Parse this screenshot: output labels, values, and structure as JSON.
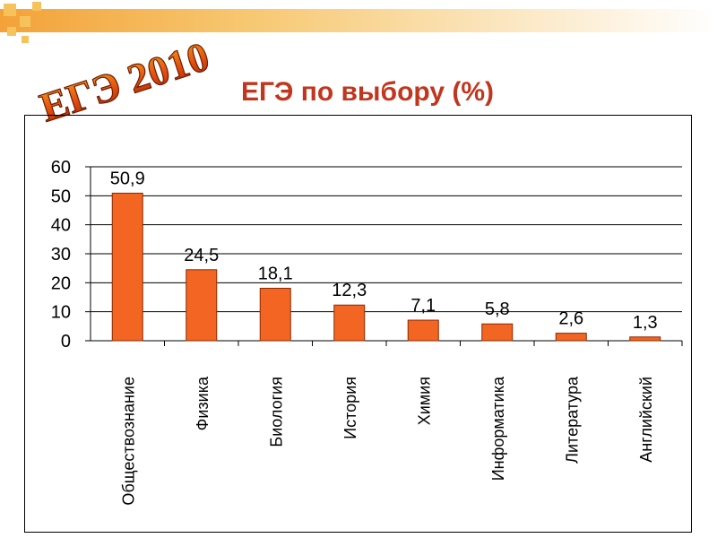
{
  "page": {
    "logo_text": "ЕГЭ 2010",
    "title": "ЕГЭ по выбору (%)"
  },
  "colors": {
    "bar": "#f26522",
    "bar_stroke": "#8a2a00",
    "title": "#c1361e",
    "accent_bar": "#f3a238",
    "logo_fill": "#e04a0e"
  },
  "chart_data": {
    "type": "bar",
    "title": "",
    "xlabel": "",
    "ylabel": "",
    "ylim": [
      0,
      60
    ],
    "yticks": [
      "0",
      "10",
      "20",
      "30",
      "40",
      "50",
      "60"
    ],
    "grid": true,
    "legend": "none",
    "categories": [
      "Обществознание",
      "Физика",
      "Биология",
      "История",
      "Химия",
      "Информатика",
      "Литература",
      "Английский"
    ],
    "values": [
      50.9,
      24.5,
      18.1,
      12.3,
      7.1,
      5.8,
      2.6,
      1.3
    ],
    "labels": [
      "50,9",
      "24,5",
      "18,1",
      "12,3",
      "7,1",
      "5,8",
      "2,6",
      "1,3"
    ]
  }
}
